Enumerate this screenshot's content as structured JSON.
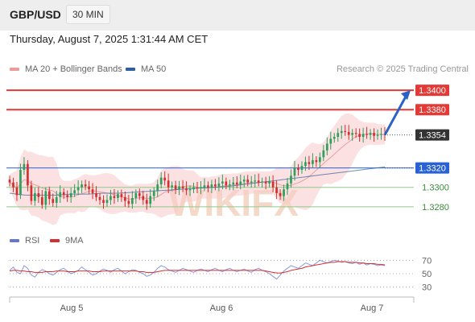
{
  "header": {
    "symbol": "GBP/USD",
    "timeframe": "30 MIN"
  },
  "datetime": "Thursday, August 7, 2025 1:31:44 AM CET",
  "legend": {
    "ma_bb": "MA 20 + Bollinger Bands",
    "ma50": "MA 50",
    "rsi": "RSI",
    "rsi_ma": "9MA"
  },
  "source": "Research © 2025 Trading Central",
  "watermark": "WIKIFX",
  "colors": {
    "resistance": "#e53935",
    "support": "#2962d4",
    "target": "#8fc987",
    "bollinger": "#f8c9c9",
    "ma50": "#2f5f9e",
    "rsi": "#6677cc",
    "rsi_ma": "#d43030"
  },
  "chart_data": [
    {
      "type": "candlestick",
      "title": "GBP/USD",
      "x_ticks": [
        "Aug 5",
        "Aug 6",
        "Aug 7"
      ],
      "ylim": [
        1.3255,
        1.3415
      ],
      "price_levels": [
        {
          "value": 1.34,
          "label": "1.3400",
          "role": "resistance"
        },
        {
          "value": 1.338,
          "label": "1.3380",
          "role": "resistance"
        },
        {
          "value": 1.3354,
          "label": "1.3354",
          "role": "last"
        },
        {
          "value": 1.332,
          "label": "1.3320",
          "role": "pivot"
        },
        {
          "value": 1.33,
          "label": "1.3300",
          "role": "target"
        },
        {
          "value": 1.328,
          "label": "1.3280",
          "role": "target"
        }
      ],
      "forecast_arrow": {
        "from": 1.3354,
        "to": 1.34
      },
      "closes": [
        1.3305,
        1.33,
        1.3292,
        1.3318,
        1.3324,
        1.3302,
        1.3286,
        1.3294,
        1.329,
        1.3282,
        1.3296,
        1.3288,
        1.3284,
        1.329,
        1.3295,
        1.3292,
        1.329,
        1.3294,
        1.3297,
        1.33,
        1.3303,
        1.3301,
        1.3298,
        1.3294,
        1.329,
        1.3287,
        1.3284,
        1.3287,
        1.3291,
        1.3289,
        1.3293,
        1.329,
        1.3286,
        1.3283,
        1.3289,
        1.3294,
        1.3291,
        1.3287,
        1.3283,
        1.3291,
        1.3296,
        1.3303,
        1.331,
        1.3307,
        1.33,
        1.3302,
        1.3298,
        1.3301,
        1.3299,
        1.3297,
        1.3298,
        1.33,
        1.3299,
        1.33,
        1.3302,
        1.33,
        1.3303,
        1.3301,
        1.3304,
        1.3306,
        1.3302,
        1.3303,
        1.3305,
        1.3303,
        1.3306,
        1.3308,
        1.3305,
        1.3306,
        1.3307,
        1.3305,
        1.3306,
        1.3304,
        1.3306,
        1.33,
        1.3294,
        1.3291,
        1.3298,
        1.3304,
        1.3312,
        1.332,
        1.3318,
        1.3322,
        1.3326,
        1.3324,
        1.3328,
        1.3326,
        1.3331,
        1.3338,
        1.3345,
        1.335,
        1.3352,
        1.3356,
        1.3358,
        1.3357,
        1.3354,
        1.3356,
        1.3355,
        1.3352,
        1.3355,
        1.3354,
        1.3356,
        1.3353,
        1.3354,
        1.3355,
        1.3354
      ],
      "ma50_values": [
        1.3294,
        1.3292,
        1.3292,
        1.3292,
        1.3293,
        1.3293,
        1.3294,
        1.3294,
        1.3295,
        1.3296,
        1.3297,
        1.3298,
        1.3299,
        1.33,
        1.3301,
        1.3303,
        1.3305,
        1.3307,
        1.3309,
        1.3311,
        1.3313,
        1.3315,
        1.3317,
        1.3319,
        1.3321
      ]
    },
    {
      "type": "line",
      "title": "RSI",
      "series": [
        {
          "name": "RSI"
        },
        {
          "name": "9MA"
        }
      ],
      "ylim": [
        20,
        80
      ],
      "y_ticks": [
        70,
        50,
        30
      ],
      "rsi_values": [
        55,
        60,
        52,
        50,
        62,
        58,
        48,
        45,
        52,
        56,
        54,
        50,
        48,
        52,
        56,
        58,
        54,
        50,
        52,
        55,
        60,
        56,
        52,
        48,
        50,
        54,
        57,
        55,
        52,
        56,
        58,
        54,
        50,
        53,
        56,
        55,
        52,
        50,
        46,
        48,
        52,
        58,
        62,
        60,
        56,
        54,
        52,
        55,
        58,
        56,
        54,
        52,
        55,
        57,
        55,
        53,
        56,
        58,
        55,
        53,
        56,
        58,
        55,
        53,
        55,
        57,
        54,
        52,
        56,
        58,
        55,
        53,
        50,
        46,
        42,
        48,
        54,
        58,
        62,
        60,
        58,
        62,
        66,
        64,
        62,
        66,
        70,
        68,
        66,
        68,
        70,
        69,
        67,
        68,
        66,
        65,
        67,
        64,
        66,
        63,
        65,
        64,
        62,
        63,
        62
      ],
      "ma_values": [
        54,
        55,
        55,
        54,
        54,
        53,
        53,
        52,
        52,
        52,
        53,
        53,
        53,
        54,
        54,
        54,
        53,
        53,
        53,
        54,
        54,
        54,
        54,
        53,
        53,
        53,
        54,
        54,
        54,
        54,
        54,
        54,
        54,
        54,
        54,
        54,
        53,
        53,
        52,
        52,
        52,
        53,
        54,
        55,
        55,
        55,
        55,
        55,
        55,
        55,
        55,
        55,
        55,
        55,
        55,
        55,
        55,
        55,
        55,
        55,
        55,
        55,
        55,
        55,
        55,
        55,
        55,
        55,
        55,
        55,
        55,
        54,
        53,
        52,
        51,
        51,
        52,
        53,
        55,
        56,
        57,
        58,
        60,
        61,
        62,
        63,
        64,
        65,
        66,
        67,
        67,
        68,
        68,
        68,
        67,
        67,
        67,
        66,
        66,
        65,
        65,
        65,
        64,
        64,
        63
      ]
    }
  ]
}
